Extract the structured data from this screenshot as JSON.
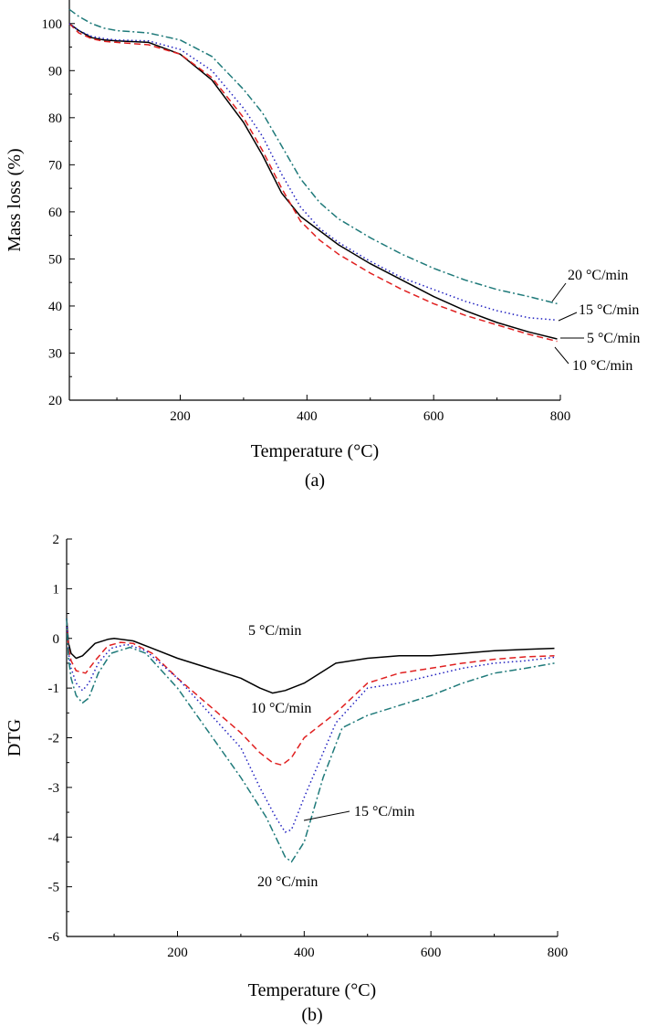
{
  "chart_data": [
    {
      "type": "line",
      "panel_label": "(a)",
      "xlabel": "Temperature (°C)",
      "ylabel": "Mass loss (%)",
      "xlim": [
        25,
        800
      ],
      "ylim": [
        20,
        105
      ],
      "xticks": [
        200,
        400,
        600,
        800
      ],
      "yticks": [
        20,
        30,
        40,
        50,
        60,
        70,
        80,
        90,
        100
      ],
      "grid": false,
      "series": [
        {
          "name": "5 °C/min",
          "color": "#000000",
          "dash": "solid",
          "x": [
            25,
            40,
            60,
            80,
            100,
            150,
            200,
            250,
            300,
            330,
            360,
            390,
            420,
            450,
            500,
            550,
            600,
            650,
            700,
            750,
            795
          ],
          "y": [
            100,
            98.5,
            97,
            96.5,
            96.3,
            96,
            93.5,
            88,
            79,
            72,
            64,
            59,
            56,
            53,
            49,
            45.5,
            42,
            39,
            36.5,
            34.5,
            33
          ]
        },
        {
          "name": "10 °C/min",
          "color": "#e02020",
          "dash": "dashed",
          "x": [
            25,
            40,
            60,
            80,
            100,
            150,
            200,
            250,
            300,
            330,
            360,
            390,
            420,
            450,
            500,
            550,
            600,
            650,
            700,
            750,
            795
          ],
          "y": [
            100,
            98,
            96.8,
            96.2,
            96,
            95.5,
            93.5,
            88.5,
            80,
            73,
            65,
            58,
            54,
            51,
            47,
            43.5,
            40.5,
            38,
            36,
            34,
            32.5
          ]
        },
        {
          "name": "15 °C/min",
          "color": "#2020c0",
          "dash": "dotted",
          "x": [
            25,
            40,
            60,
            80,
            100,
            150,
            200,
            250,
            300,
            330,
            360,
            390,
            420,
            450,
            500,
            550,
            600,
            650,
            700,
            750,
            795
          ],
          "y": [
            100,
            98.5,
            97.3,
            96.8,
            96.5,
            96.3,
            94.5,
            90,
            82,
            76,
            68,
            61,
            56.5,
            53.5,
            49.5,
            46,
            43.5,
            41,
            39,
            37.5,
            37
          ]
        },
        {
          "name": "20 °C/min",
          "color": "#1f7a7a",
          "dash": "dashdot",
          "x": [
            25,
            40,
            60,
            80,
            100,
            150,
            200,
            250,
            300,
            330,
            360,
            390,
            420,
            450,
            500,
            550,
            600,
            650,
            700,
            750,
            795
          ],
          "y": [
            103,
            101.5,
            100,
            99,
            98.5,
            98,
            96.5,
            93,
            86,
            81,
            74,
            67,
            62,
            58.5,
            54.5,
            51,
            48,
            45.5,
            43.5,
            42,
            40.5
          ]
        }
      ],
      "annotations": [
        {
          "text": "20 °C/min",
          "series": "20 °C/min"
        },
        {
          "text": "15 °C/min",
          "series": "15 °C/min"
        },
        {
          "text": "5 °C/min",
          "series": "5 °C/min"
        },
        {
          "text": "10 °C/min",
          "series": "10 °C/min"
        }
      ]
    },
    {
      "type": "line",
      "panel_label": "(b)",
      "xlabel": "Temperature (°C)",
      "ylabel": "DTG",
      "xlim": [
        25,
        800
      ],
      "ylim": [
        -6,
        2
      ],
      "xticks": [
        200,
        400,
        600,
        800
      ],
      "yticks": [
        -6,
        -5,
        -4,
        -3,
        -2,
        -1,
        0,
        1,
        2
      ],
      "grid": false,
      "series": [
        {
          "name": "5 °C/min",
          "color": "#000000",
          "dash": "solid",
          "x": [
            25,
            28,
            32,
            40,
            50,
            70,
            90,
            100,
            130,
            160,
            200,
            250,
            300,
            330,
            350,
            370,
            400,
            450,
            500,
            550,
            600,
            650,
            700,
            750,
            795
          ],
          "y": [
            0.4,
            -0.1,
            -0.3,
            -0.4,
            -0.35,
            -0.1,
            -0.02,
            0,
            -0.05,
            -0.2,
            -0.4,
            -0.6,
            -0.8,
            -1.0,
            -1.1,
            -1.05,
            -0.9,
            -0.5,
            -0.4,
            -0.35,
            -0.35,
            -0.3,
            -0.25,
            -0.22,
            -0.2
          ]
        },
        {
          "name": "10 °C/min",
          "color": "#e02020",
          "dash": "dashed",
          "x": [
            25,
            28,
            32,
            40,
            55,
            70,
            90,
            110,
            130,
            160,
            200,
            250,
            300,
            330,
            350,
            365,
            380,
            400,
            450,
            500,
            550,
            600,
            650,
            700,
            750,
            795
          ],
          "y": [
            0.4,
            -0.2,
            -0.45,
            -0.65,
            -0.7,
            -0.45,
            -0.15,
            -0.08,
            -0.1,
            -0.3,
            -0.8,
            -1.35,
            -1.9,
            -2.3,
            -2.5,
            -2.55,
            -2.4,
            -2.0,
            -1.5,
            -0.9,
            -0.7,
            -0.6,
            -0.5,
            -0.42,
            -0.37,
            -0.35
          ]
        },
        {
          "name": "15 °C/min",
          "color": "#2020c0",
          "dash": "dotted",
          "x": [
            25,
            28,
            32,
            40,
            50,
            60,
            75,
            95,
            120,
            150,
            200,
            250,
            300,
            330,
            355,
            370,
            380,
            400,
            450,
            500,
            550,
            600,
            650,
            700,
            750,
            795
          ],
          "y": [
            0.4,
            -0.3,
            -0.6,
            -0.9,
            -1.05,
            -0.9,
            -0.5,
            -0.2,
            -0.12,
            -0.25,
            -0.8,
            -1.5,
            -2.2,
            -3.0,
            -3.6,
            -3.9,
            -3.85,
            -3.2,
            -1.7,
            -1.0,
            -0.9,
            -0.75,
            -0.6,
            -0.5,
            -0.45,
            -0.38
          ]
        },
        {
          "name": "20 °C/min",
          "color": "#1f7a7a",
          "dash": "dashdot",
          "x": [
            25,
            28,
            32,
            40,
            50,
            60,
            75,
            95,
            125,
            150,
            200,
            250,
            300,
            340,
            370,
            380,
            400,
            430,
            460,
            500,
            550,
            600,
            650,
            700,
            750,
            795
          ],
          "y": [
            0.4,
            -0.4,
            -0.8,
            -1.15,
            -1.3,
            -1.2,
            -0.7,
            -0.3,
            -0.18,
            -0.3,
            -1.0,
            -1.9,
            -2.8,
            -3.6,
            -4.4,
            -4.5,
            -4.1,
            -2.8,
            -1.8,
            -1.55,
            -1.35,
            -1.15,
            -0.9,
            -0.7,
            -0.6,
            -0.5
          ]
        }
      ],
      "annotations": [
        {
          "text": "5 °C/min",
          "series": "5 °C/min"
        },
        {
          "text": "10 °C/min",
          "series": "10 °C/min"
        },
        {
          "text": "15 °C/min",
          "series": "15 °C/min"
        },
        {
          "text": "20 °C/min",
          "series": "20 °C/min"
        }
      ]
    }
  ]
}
